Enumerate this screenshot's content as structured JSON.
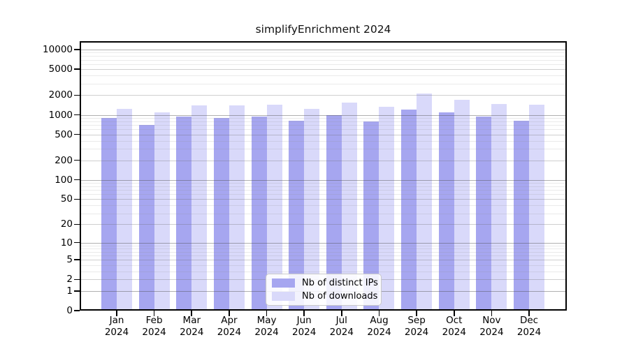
{
  "chart_data": {
    "type": "bar",
    "title": "simplifyEnrichment 2024",
    "categories": [
      "Jan 2024",
      "Feb 2024",
      "Mar 2024",
      "Apr 2024",
      "May 2024",
      "Jun 2024",
      "Jul 2024",
      "Aug 2024",
      "Sep 2024",
      "Oct 2024",
      "Nov 2024",
      "Dec 2024"
    ],
    "series": [
      {
        "name": "Nb of distinct IPs",
        "color": "#a6a6f0",
        "values": [
          900,
          705,
          950,
          900,
          950,
          820,
          1000,
          800,
          1190,
          1100,
          950,
          820
        ]
      },
      {
        "name": "Nb of downloads",
        "color": "#d9d9fa",
        "values": [
          1240,
          1100,
          1410,
          1410,
          1445,
          1245,
          1555,
          1340,
          2140,
          1720,
          1480,
          1445
        ]
      }
    ],
    "xlabel": "",
    "ylabel": "",
    "yscale": "log1p",
    "ylim": [
      0,
      13500
    ],
    "yticks": [
      0,
      1,
      2,
      5,
      10,
      20,
      50,
      100,
      200,
      500,
      1000,
      2000,
      5000,
      10000
    ],
    "grid": "on",
    "legend_position": "inside-bottom-center",
    "colors": {
      "grid_major": "#b1b1b1",
      "grid_mid": "#cbcbcb",
      "grid_minor": "#e5e5e5",
      "axis": "#000000",
      "background": "#ffffff"
    }
  }
}
